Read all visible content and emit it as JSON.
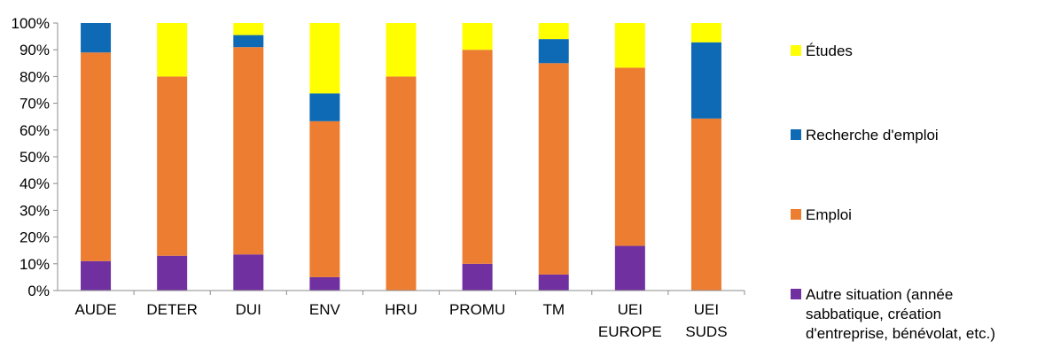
{
  "chart_data": {
    "type": "bar",
    "stacked": true,
    "categories": [
      [
        "AUDE"
      ],
      [
        "DETER"
      ],
      [
        "DUI"
      ],
      [
        "ENV"
      ],
      [
        "HRU"
      ],
      [
        "PROMU"
      ],
      [
        "TM"
      ],
      [
        "UEI",
        "EUROPE"
      ],
      [
        "UEI",
        "SUDS"
      ]
    ],
    "ylim": [
      0,
      100
    ],
    "yticks": [
      "0%",
      "10%",
      "20%",
      "30%",
      "40%",
      "50%",
      "60%",
      "70%",
      "80%",
      "90%",
      "100%"
    ],
    "legend_position": "right",
    "series": [
      {
        "name": "Autre situation (année sabbatique, création d'entreprise, bénévolat, etc.)",
        "legend_lines": [
          "Autre situation (année",
          "sabbatique, création",
          "d'entreprise, bénévolat, etc.)"
        ],
        "color": "#7030a0",
        "values": [
          11,
          13,
          13.5,
          5,
          0,
          10,
          6,
          16.7,
          0
        ]
      },
      {
        "name": "Emploi",
        "legend_lines": [
          "Emploi"
        ],
        "color": "#ed7d31",
        "values": [
          78,
          67,
          77.5,
          58.3,
          80,
          80,
          79,
          66.6,
          64.3
        ]
      },
      {
        "name": "Recherche d'emploi",
        "legend_lines": [
          "Recherche d'emploi"
        ],
        "color": "#0e6ab4",
        "values": [
          11,
          0,
          4.5,
          10.4,
          0,
          0,
          9,
          0,
          28.5
        ]
      },
      {
        "name": "Études",
        "legend_lines": [
          "Études"
        ],
        "color": "#ffff00",
        "values": [
          0,
          20,
          4.5,
          26.3,
          20,
          10,
          6,
          16.7,
          7.2
        ]
      }
    ]
  }
}
